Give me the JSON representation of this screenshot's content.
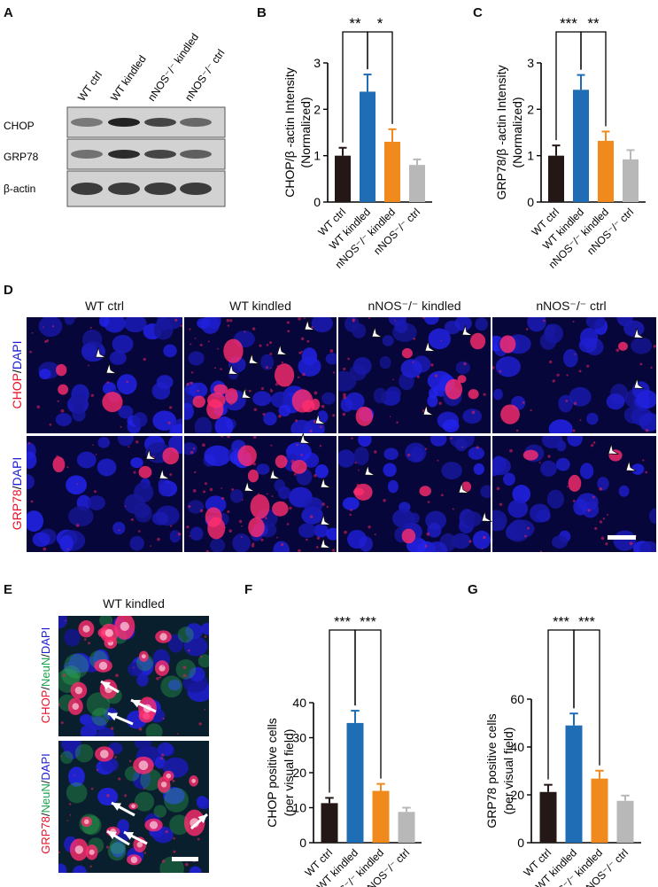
{
  "panels": {
    "A": {
      "letter": "A",
      "lanes": [
        "WT ctrl",
        "WT kindled",
        "nNOS⁻/⁻ kindled",
        "nNOS⁻/⁻ ctrl"
      ],
      "rows": [
        "CHOP",
        "GRP78",
        "β-actin"
      ],
      "band_intensity": [
        [
          0.45,
          0.95,
          0.75,
          0.55
        ],
        [
          0.5,
          0.9,
          0.75,
          0.6
        ],
        [
          0.8,
          0.8,
          0.8,
          0.8
        ]
      ]
    },
    "B": {
      "letter": "B"
    },
    "C": {
      "letter": "C"
    },
    "D": {
      "letter": "D",
      "columns": [
        "WT ctrl",
        "WT kindled",
        "nNOS⁻/⁻ kindled",
        "nNOS⁻/⁻ ctrl"
      ],
      "row_labels": [
        {
          "red": "CHOP",
          "sep": "/",
          "blue": "DAPI"
        },
        {
          "red": "GRP78",
          "sep": "/",
          "blue": "DAPI"
        }
      ]
    },
    "E": {
      "letter": "E",
      "title": "WT kindled",
      "row_labels": [
        {
          "red": "CHOP",
          "sep1": "/",
          "green": "NeuN",
          "sep2": "/",
          "blue": "DAPI"
        },
        {
          "red": "GRP78",
          "sep1": "/",
          "green": "NeuN",
          "sep2": "/",
          "blue": "DAPI"
        }
      ]
    },
    "F": {
      "letter": "F"
    },
    "G": {
      "letter": "G"
    }
  },
  "colors": {
    "wt_ctrl": "#231815",
    "wt_kindled": "#1f6db5",
    "nnos_kindled": "#f08a1c",
    "nnos_ctrl": "#b8b8b8",
    "fluor_red": "#e8132b",
    "fluor_green": "#16a34a",
    "fluor_blue": "#1b1bd6"
  },
  "chart_data": [
    {
      "panel": "B",
      "type": "bar",
      "categories": [
        "WT ctrl",
        "WT kindled",
        "nNOS⁻/⁻ kindled",
        "nNOS⁻/⁻ ctrl"
      ],
      "values": [
        1.0,
        2.38,
        1.3,
        0.8
      ],
      "errors": [
        0.17,
        0.37,
        0.27,
        0.12
      ],
      "ylabel": [
        "CHOP/β -actin Intensity",
        "(Normalized)"
      ],
      "ylim": [
        0,
        3
      ],
      "yticks": [
        0,
        1,
        2,
        3
      ],
      "significance": [
        {
          "from": 0,
          "to": 1,
          "label": "**"
        },
        {
          "from": 1,
          "to": 2,
          "label": "*"
        }
      ]
    },
    {
      "panel": "C",
      "type": "bar",
      "categories": [
        "WT ctrl",
        "WT kindled",
        "nNOS⁻/⁻ kindled",
        "nNOS⁻/⁻ ctrl"
      ],
      "values": [
        1.0,
        2.42,
        1.32,
        0.92
      ],
      "errors": [
        0.22,
        0.32,
        0.2,
        0.2
      ],
      "ylabel": [
        "GRP78/β -actin Intensity",
        "(Normalized)"
      ],
      "ylim": [
        0,
        3
      ],
      "yticks": [
        0,
        1,
        2,
        3
      ],
      "significance": [
        {
          "from": 0,
          "to": 1,
          "label": "***"
        },
        {
          "from": 1,
          "to": 2,
          "label": "**"
        }
      ]
    },
    {
      "panel": "F",
      "type": "bar",
      "categories": [
        "WT ctrl",
        "WT kindled",
        "nNOS⁻/⁻ kindled",
        "nNOS⁻/⁻ ctrl"
      ],
      "values": [
        11.3,
        34.2,
        14.8,
        8.8
      ],
      "errors": [
        1.5,
        3.5,
        2.0,
        1.2
      ],
      "ylabel": [
        "CHOP positive cells",
        "(per visual field)"
      ],
      "ylim": [
        0,
        40
      ],
      "yticks": [
        0,
        10,
        20,
        30,
        40
      ],
      "significance": [
        {
          "from": 0,
          "to": 1,
          "label": "***"
        },
        {
          "from": 1,
          "to": 2,
          "label": "***"
        }
      ]
    },
    {
      "panel": "G",
      "type": "bar",
      "categories": [
        "WT ctrl",
        "WT kindled",
        "nNOS⁻/⁻ kindled",
        "nNOS⁻/⁻ ctrl"
      ],
      "values": [
        21.2,
        49.0,
        26.8,
        17.5
      ],
      "errors": [
        3.0,
        5.0,
        3.3,
        2.2
      ],
      "ylabel": [
        "GRP78 positive cells",
        "(per visual field)"
      ],
      "ylim": [
        0,
        60
      ],
      "yticks": [
        0,
        20,
        40,
        60
      ],
      "significance": [
        {
          "from": 0,
          "to": 1,
          "label": "***"
        },
        {
          "from": 1,
          "to": 2,
          "label": "***"
        }
      ]
    }
  ]
}
